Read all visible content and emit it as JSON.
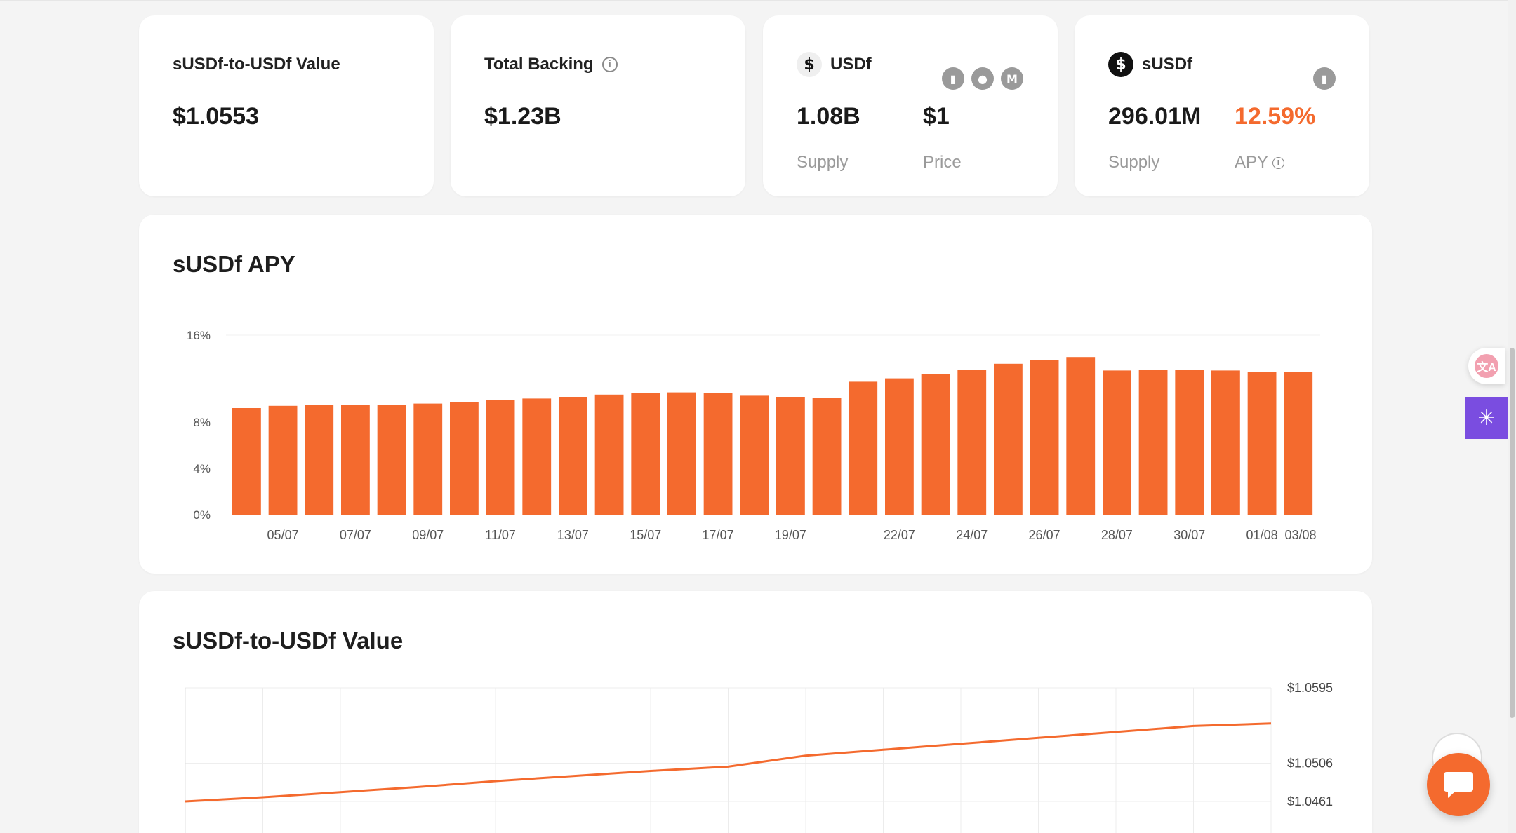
{
  "cards": {
    "value": {
      "label": "sUSDf-to-USDf Value",
      "value": "$1.0553"
    },
    "backing": {
      "label": "Total Backing",
      "value": "$1.23B"
    },
    "usdf": {
      "name": "USDf",
      "supply": "1.08B",
      "supply_label": "Supply",
      "price": "$1",
      "price_label": "Price"
    },
    "susdf": {
      "name": "sUSDf",
      "supply": "296.01M",
      "supply_label": "Supply",
      "apy": "12.59%",
      "apy_label": "APY"
    }
  },
  "icons": {
    "info": "info-circle-icon",
    "usdf_coin": "usdf-coin-icon",
    "susdf_coin": "susdf-coin-icon",
    "usdf_platforms": [
      "defillama-icon",
      "coingecko-icon",
      "coinmarketcap-icon"
    ],
    "susdf_platforms": [
      "defillama-icon"
    ],
    "translate": "translate-icon",
    "ai_assistant": "sparkle-icon",
    "chat": "chat-bubble-icon"
  },
  "colors": {
    "accent": "#f46a2e",
    "text": "#1c1c1c",
    "muted": "#9a9a9a",
    "grid": "#ececec"
  },
  "chart_data": [
    {
      "type": "bar",
      "title": "sUSDf APY",
      "x_tick_labels": [
        "05/07",
        "07/07",
        "09/07",
        "11/07",
        "13/07",
        "15/07",
        "17/07",
        "19/07",
        "22/07",
        "24/07",
        "26/07",
        "28/07",
        "30/07",
        "01/08",
        "03/08"
      ],
      "y_tick_labels": [
        "16%",
        "8%",
        "4%",
        "0%"
      ],
      "ylim": [
        0,
        16
      ],
      "values": [
        9.5,
        9.7,
        9.75,
        9.75,
        9.8,
        9.9,
        10.0,
        10.2,
        10.35,
        10.5,
        10.7,
        10.85,
        10.9,
        10.85,
        10.6,
        10.5,
        10.4,
        11.85,
        12.15,
        12.5,
        12.9,
        13.45,
        13.8,
        14.05,
        12.85,
        12.9,
        12.9,
        12.85,
        12.7,
        12.7
      ],
      "series_color": "#f46a2e",
      "grid": false
    },
    {
      "type": "line",
      "title": "sUSDf-to-USDf Value",
      "y_tick_labels": [
        "$1.0595",
        "$1.0506",
        "$1.0461"
      ],
      "ylim": [
        1.0461,
        1.0595
      ],
      "values": [
        1.0461,
        1.0466,
        1.0472,
        1.0478,
        1.0485,
        1.0491,
        1.0497,
        1.0502,
        1.0515,
        1.0522,
        1.0529,
        1.0536,
        1.0543,
        1.055,
        1.0553
      ],
      "series_color": "#f46a2e",
      "grid": true,
      "y_axis_position": "right"
    }
  ]
}
